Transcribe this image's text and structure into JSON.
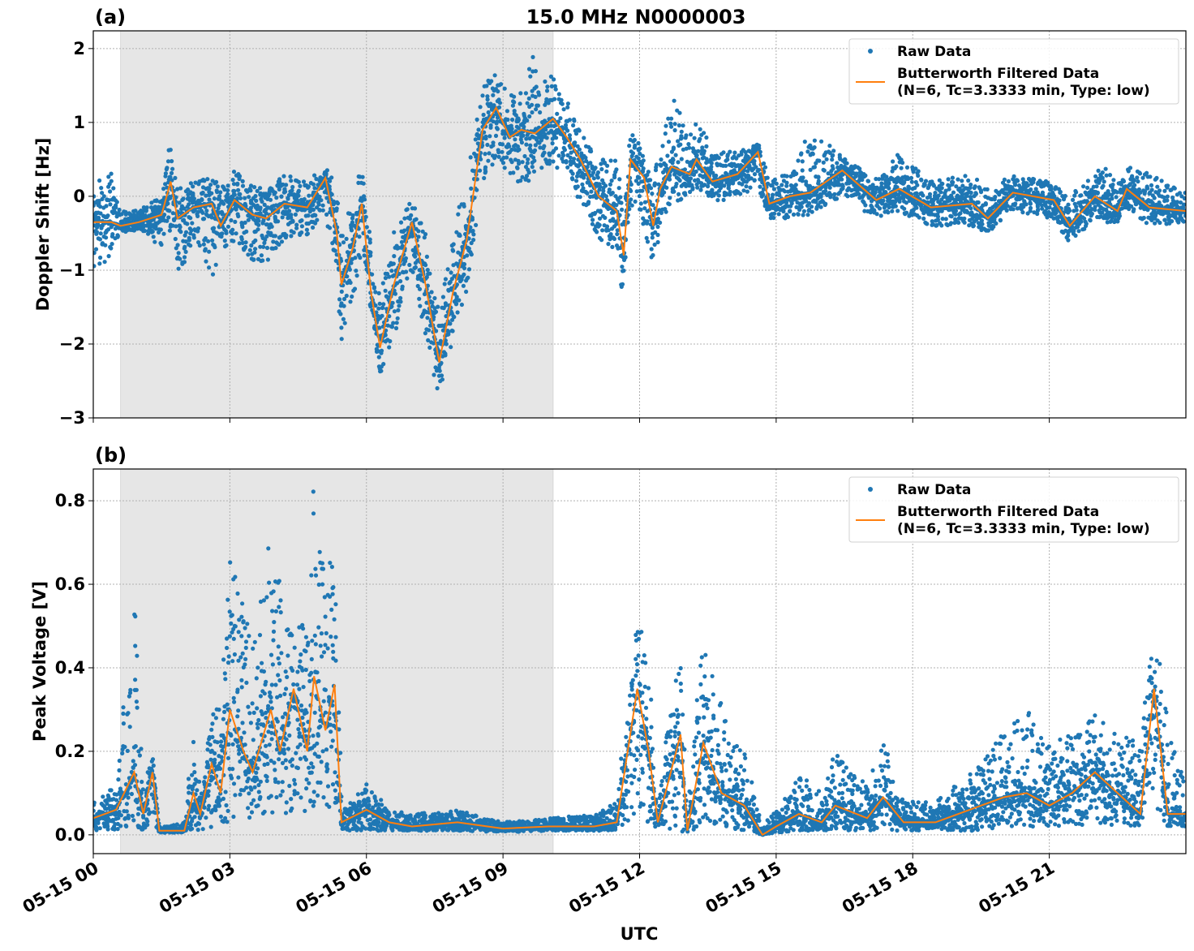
{
  "title": "15.0 MHz N0000003",
  "xlabel": "UTC",
  "legend": {
    "raw": "Raw Data",
    "filtered_line1": "Butterworth Filtered Data",
    "filtered_line2": "(N=6, Tc=3.3333 min, Type: low)"
  },
  "colors": {
    "raw": "#1f77b4",
    "filtered": "#ff7f0e",
    "shade": "#e6e6e6"
  },
  "x_ticks": {
    "hours": [
      0,
      3,
      6,
      9,
      12,
      15,
      18,
      21
    ],
    "labels": [
      "05-15 00",
      "05-15 03",
      "05-15 06",
      "05-15 09",
      "05-15 12",
      "05-15 15",
      "05-15 18",
      "05-15 21"
    ]
  },
  "xlim_hours": [
    0,
    24
  ],
  "shaded_interval_hours": [
    0.6,
    10.1
  ],
  "chart_data": [
    {
      "type": "scatter+line",
      "panel_label": "(a)",
      "ylabel": "Doppler Shift [Hz]",
      "ylim": [
        -3.0,
        2.24
      ],
      "y_ticks": [
        2,
        1,
        0,
        -1,
        -2,
        -3
      ],
      "y_tick_labels": [
        "2",
        "1",
        "0",
        "−1",
        "−2",
        "−3"
      ],
      "grid": true,
      "legend_position": "top-right",
      "t_hours": [
        0,
        0.4,
        0.6,
        1.0,
        1.5,
        1.7,
        1.85,
        2.2,
        2.6,
        2.8,
        3.1,
        3.5,
        3.8,
        4.2,
        4.7,
        5.1,
        5.35,
        5.45,
        5.7,
        5.9,
        6.1,
        6.3,
        6.6,
        7.0,
        7.3,
        7.6,
        7.9,
        8.2,
        8.55,
        8.85,
        9.15,
        9.4,
        9.7,
        10.1,
        10.4,
        10.7,
        11.1,
        11.5,
        11.65,
        11.8,
        12.1,
        12.3,
        12.45,
        12.7,
        13.1,
        13.25,
        13.6,
        14.15,
        14.6,
        14.85,
        15.3,
        15.75,
        16.45,
        17.2,
        17.7,
        18.4,
        19.3,
        19.65,
        20.2,
        21.1,
        21.45,
        22.0,
        22.5,
        22.7,
        23.2,
        24.0
      ],
      "filtered": [
        -0.35,
        -0.35,
        -0.4,
        -0.35,
        -0.25,
        0.2,
        -0.3,
        -0.15,
        -0.1,
        -0.4,
        -0.05,
        -0.25,
        -0.3,
        -0.1,
        -0.15,
        0.25,
        -0.5,
        -1.2,
        -0.7,
        -0.1,
        -1.3,
        -2.05,
        -1.2,
        -0.35,
        -1.2,
        -2.25,
        -1.3,
        -0.6,
        0.9,
        1.2,
        0.8,
        0.9,
        0.85,
        1.05,
        0.8,
        0.5,
        0.0,
        -0.2,
        -0.8,
        0.5,
        0.25,
        -0.4,
        0.1,
        0.4,
        0.3,
        0.5,
        0.2,
        0.3,
        0.6,
        -0.1,
        0.0,
        0.05,
        0.35,
        -0.05,
        0.1,
        -0.15,
        -0.1,
        -0.3,
        0.05,
        -0.05,
        -0.4,
        0.0,
        -0.2,
        0.1,
        -0.15,
        -0.2
      ],
      "raw_min": [
        -1.1,
        -0.8,
        -0.5,
        -0.45,
        -0.7,
        -0.5,
        -1.15,
        -0.6,
        -1.1,
        -0.9,
        -0.6,
        -0.9,
        -0.9,
        -0.6,
        -0.55,
        -0.2,
        -1.0,
        -2.0,
        -1.5,
        -0.8,
        -1.8,
        -2.45,
        -1.9,
        -1.0,
        -1.9,
        -2.75,
        -2.0,
        -1.3,
        0.2,
        0.5,
        0.3,
        0.1,
        0.2,
        0.4,
        0.3,
        -0.1,
        -0.6,
        -0.8,
        -1.55,
        -0.2,
        -0.4,
        -0.95,
        -0.4,
        -0.1,
        0.0,
        0.1,
        -0.1,
        0.0,
        0.1,
        -0.3,
        -0.3,
        -0.25,
        0.0,
        -0.3,
        -0.2,
        -0.4,
        -0.4,
        -0.5,
        -0.2,
        -0.3,
        -0.65,
        -0.3,
        -0.4,
        -0.2,
        -0.4,
        -0.35
      ],
      "raw_max": [
        0.1,
        0.45,
        -0.2,
        -0.15,
        0.0,
        0.8,
        0.1,
        0.2,
        0.3,
        0.1,
        0.35,
        0.15,
        0.1,
        0.3,
        0.2,
        0.4,
        0.1,
        -0.5,
        0.1,
        0.35,
        -0.5,
        -1.4,
        -0.4,
        0.0,
        -0.5,
        -1.5,
        -0.5,
        0.2,
        1.55,
        1.65,
        1.4,
        1.45,
        2.0,
        1.6,
        1.3,
        0.9,
        0.5,
        0.5,
        -0.2,
        0.85,
        0.7,
        0.3,
        0.6,
        1.4,
        0.9,
        1.05,
        0.65,
        0.6,
        0.75,
        0.3,
        0.3,
        0.9,
        0.55,
        0.25,
        0.6,
        0.2,
        0.3,
        0.1,
        0.3,
        0.2,
        0.0,
        0.45,
        0.3,
        0.4,
        0.3,
        0.05
      ]
    },
    {
      "type": "scatter+line",
      "panel_label": "(b)",
      "ylabel": "Peak Voltage [V]",
      "ylim": [
        -0.045,
        0.876
      ],
      "y_ticks": [
        0.0,
        0.2,
        0.4,
        0.6,
        0.8
      ],
      "y_tick_labels": [
        "0.0",
        "0.2",
        "0.4",
        "0.6",
        "0.8"
      ],
      "grid": true,
      "legend_position": "top-right",
      "t_hours": [
        0,
        0.5,
        0.9,
        1.1,
        1.3,
        1.45,
        2.0,
        2.2,
        2.35,
        2.6,
        2.8,
        3.0,
        3.3,
        3.5,
        3.9,
        4.1,
        4.4,
        4.7,
        4.85,
        5.1,
        5.3,
        5.45,
        6.0,
        6.5,
        7.0,
        8.0,
        9.0,
        10.0,
        11.0,
        11.5,
        11.95,
        12.2,
        12.4,
        12.9,
        13.05,
        13.4,
        13.8,
        14.3,
        14.7,
        15.0,
        15.5,
        16.0,
        16.3,
        17.0,
        17.35,
        17.8,
        18.5,
        19.5,
        20.0,
        20.5,
        21.0,
        21.5,
        22.0,
        22.5,
        23.0,
        23.3,
        23.6,
        24.0
      ],
      "filtered": [
        0.04,
        0.06,
        0.15,
        0.05,
        0.15,
        0.01,
        0.01,
        0.1,
        0.05,
        0.17,
        0.1,
        0.3,
        0.2,
        0.15,
        0.3,
        0.2,
        0.35,
        0.2,
        0.38,
        0.25,
        0.36,
        0.03,
        0.06,
        0.03,
        0.02,
        0.03,
        0.015,
        0.02,
        0.02,
        0.03,
        0.35,
        0.2,
        0.03,
        0.24,
        0.01,
        0.22,
        0.1,
        0.07,
        0.0,
        0.02,
        0.05,
        0.03,
        0.07,
        0.04,
        0.09,
        0.03,
        0.03,
        0.07,
        0.09,
        0.1,
        0.07,
        0.1,
        0.15,
        0.1,
        0.05,
        0.35,
        0.05,
        0.05
      ],
      "raw_min": [
        0.01,
        0.01,
        0.02,
        0.01,
        0.02,
        0.005,
        0.005,
        0.01,
        0.01,
        0.02,
        0.02,
        0.03,
        0.03,
        0.04,
        0.05,
        0.05,
        0.05,
        0.05,
        0.05,
        0.05,
        0.05,
        0.01,
        0.01,
        0.01,
        0.01,
        0.01,
        0.005,
        0.01,
        0.01,
        0.01,
        0.05,
        0.02,
        0.01,
        0.01,
        0.0,
        0.03,
        0.02,
        0.01,
        0.0,
        0.005,
        0.01,
        0.01,
        0.01,
        0.01,
        0.01,
        0.01,
        0.01,
        0.01,
        0.02,
        0.02,
        0.02,
        0.02,
        0.03,
        0.02,
        0.02,
        0.05,
        0.02,
        0.02
      ],
      "raw_max": [
        0.08,
        0.12,
        0.59,
        0.12,
        0.19,
        0.02,
        0.03,
        0.23,
        0.1,
        0.3,
        0.35,
        0.67,
        0.56,
        0.45,
        0.72,
        0.6,
        0.56,
        0.5,
        0.83,
        0.6,
        0.74,
        0.05,
        0.13,
        0.06,
        0.05,
        0.06,
        0.03,
        0.04,
        0.05,
        0.08,
        0.52,
        0.45,
        0.08,
        0.47,
        0.03,
        0.52,
        0.3,
        0.2,
        0.02,
        0.06,
        0.15,
        0.1,
        0.2,
        0.12,
        0.23,
        0.08,
        0.08,
        0.17,
        0.25,
        0.3,
        0.22,
        0.25,
        0.3,
        0.3,
        0.2,
        0.53,
        0.25,
        0.15
      ]
    }
  ]
}
